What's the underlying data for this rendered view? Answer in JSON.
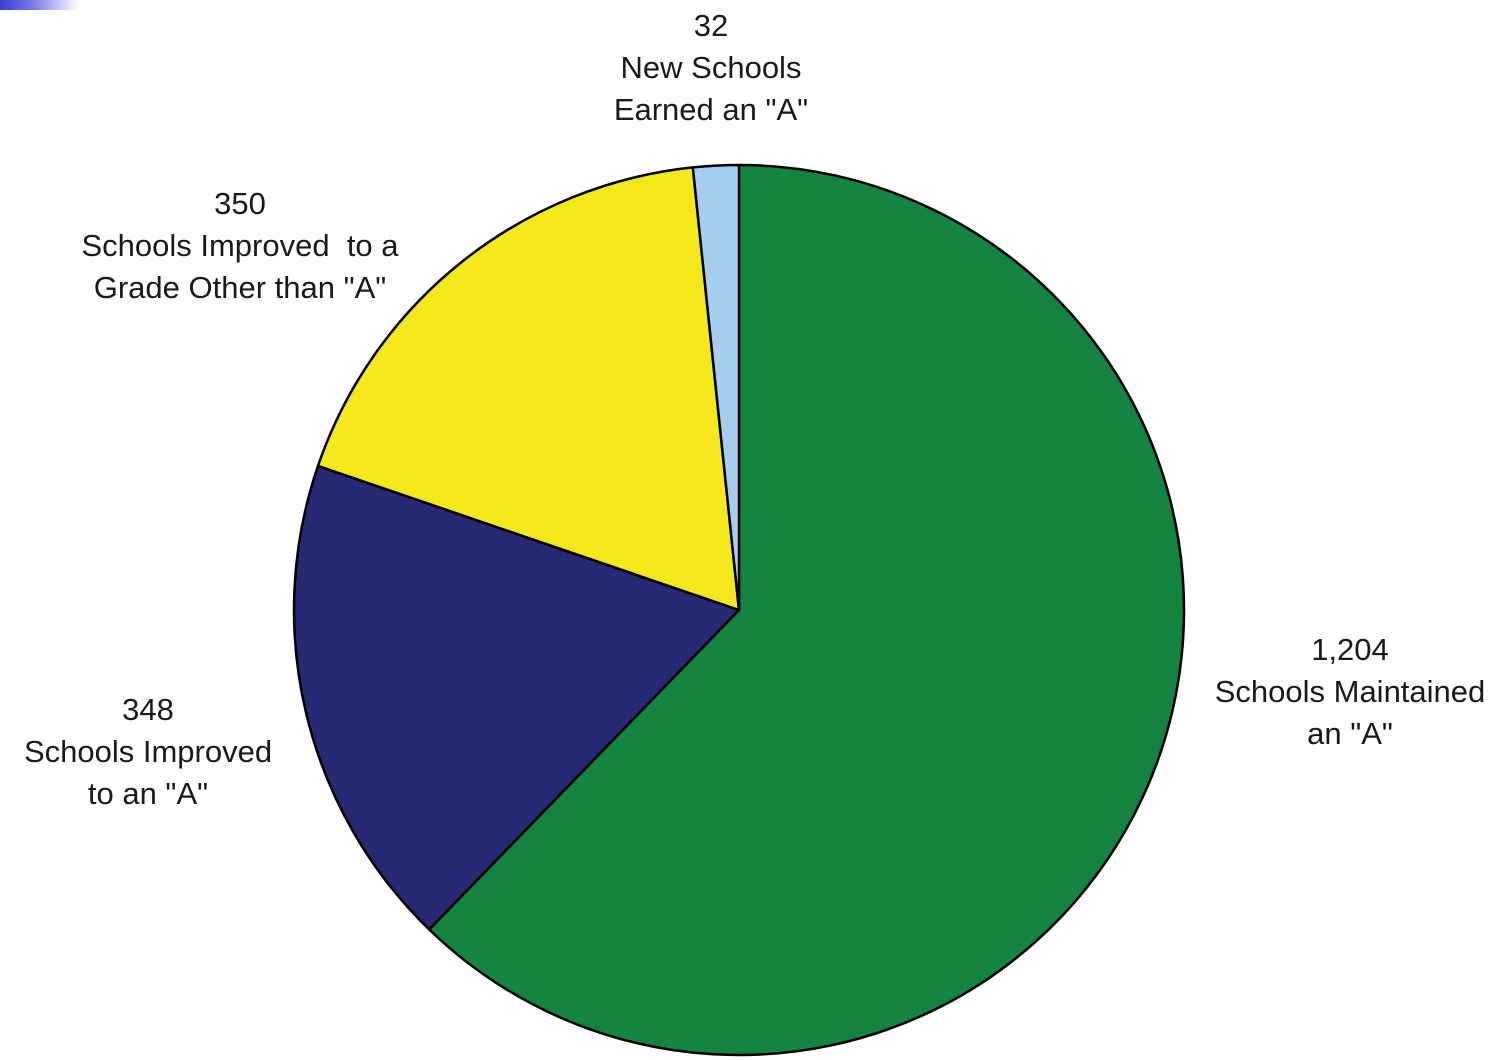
{
  "chart_data": {
    "type": "pie",
    "slices": [
      {
        "value": 1204,
        "value_label": "1,204",
        "label_lines": [
          "Schools Maintained",
          "an \"A\""
        ],
        "color": "#13843f"
      },
      {
        "value": 348,
        "value_label": "348",
        "label_lines": [
          "Schools Improved",
          "to an \"A\""
        ],
        "color": "#272974"
      },
      {
        "value": 350,
        "value_label": "350",
        "label_lines": [
          "Schools Improved  to a",
          "Grade Other than \"A\""
        ],
        "color": "#f4e81c"
      },
      {
        "value": 32,
        "value_label": "32",
        "label_lines": [
          "New Schools",
          "Earned an \"A\""
        ],
        "color": "#a5cdee"
      }
    ],
    "start": "12 o'clock",
    "direction": "clockwise",
    "outline_color": "#000000",
    "legend": "none"
  }
}
